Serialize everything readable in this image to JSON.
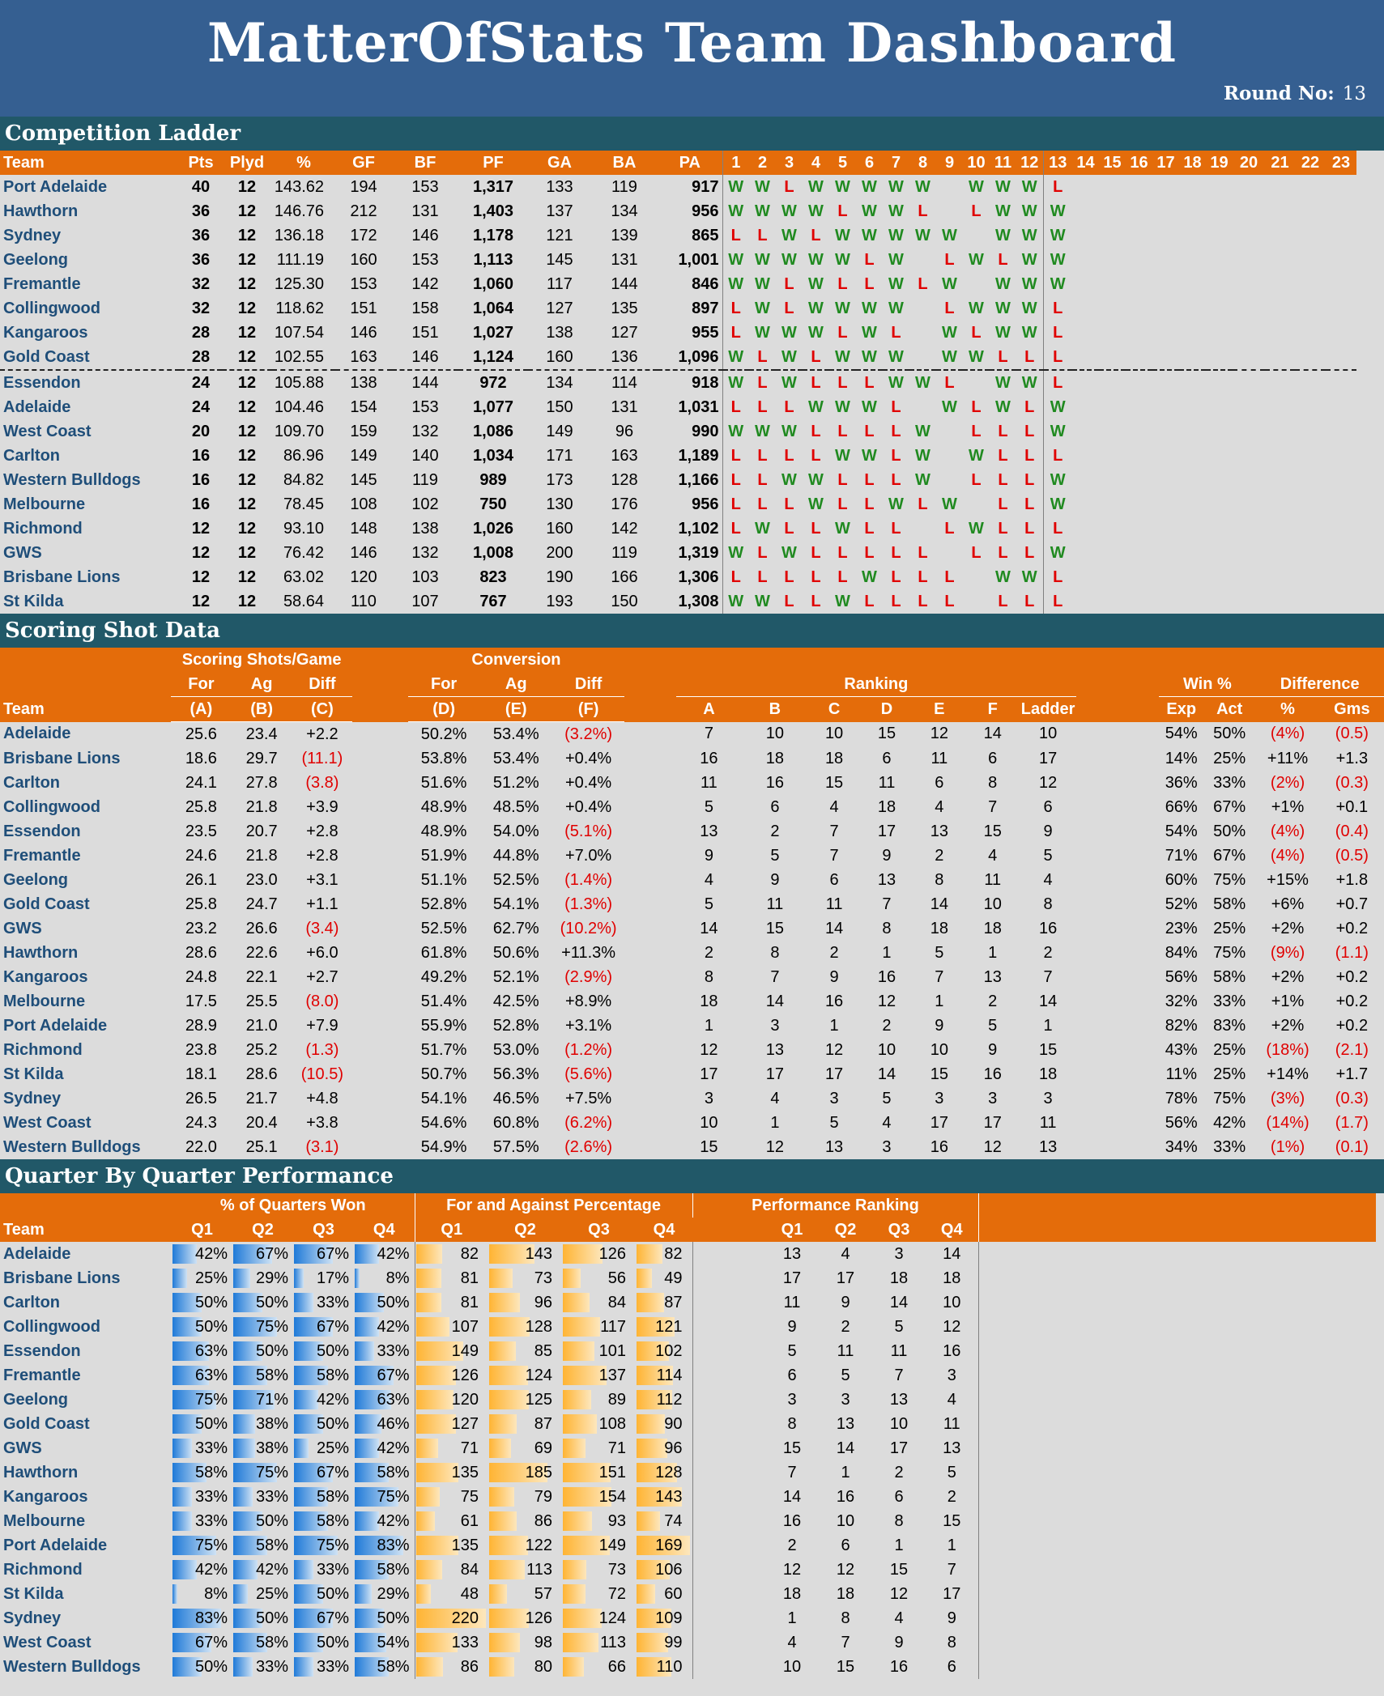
{
  "header": {
    "title": "MatterOfStats Team Dashboard",
    "round_label": "Round No:",
    "round_value": "13"
  },
  "ladder": {
    "title": "Competition Ladder",
    "columns": [
      "Team",
      "Pts",
      "Plyd",
      "%",
      "GF",
      "BF",
      "PF",
      "GA",
      "BA",
      "PA"
    ],
    "rounds": [
      "1",
      "2",
      "3",
      "4",
      "5",
      "6",
      "7",
      "8",
      "9",
      "10",
      "11",
      "12",
      "13",
      "14",
      "15",
      "16",
      "17",
      "18",
      "19",
      "20",
      "21",
      "22",
      "23"
    ],
    "rows": [
      {
        "team": "Port Adelaide",
        "pts": "40",
        "plyd": "12",
        "pct": "143.62",
        "gf": "194",
        "bf": "153",
        "pf": "1,317",
        "ga": "133",
        "ba": "119",
        "pa": "917",
        "res": "WWLWWWWW WWWL"
      },
      {
        "team": "Hawthorn",
        "pts": "36",
        "plyd": "12",
        "pct": "146.76",
        "gf": "212",
        "bf": "131",
        "pf": "1,403",
        "ga": "137",
        "ba": "134",
        "pa": "956",
        "res": "WWWWLWWL LWWW"
      },
      {
        "team": "Sydney",
        "pts": "36",
        "plyd": "12",
        "pct": "136.18",
        "gf": "172",
        "bf": "146",
        "pf": "1,178",
        "ga": "121",
        "ba": "139",
        "pa": "865",
        "res": "LLWLWWWWW WWW"
      },
      {
        "team": "Geelong",
        "pts": "36",
        "plyd": "12",
        "pct": "111.19",
        "gf": "160",
        "bf": "153",
        "pf": "1,113",
        "ga": "145",
        "ba": "131",
        "pa": "1,001",
        "res": "WWWWWLW LWLWW"
      },
      {
        "team": "Fremantle",
        "pts": "32",
        "plyd": "12",
        "pct": "125.30",
        "gf": "153",
        "bf": "142",
        "pf": "1,060",
        "ga": "117",
        "ba": "144",
        "pa": "846",
        "res": "WWLWLLWLW WWW"
      },
      {
        "team": "Collingwood",
        "pts": "32",
        "plyd": "12",
        "pct": "118.62",
        "gf": "151",
        "bf": "158",
        "pf": "1,064",
        "ga": "127",
        "ba": "135",
        "pa": "897",
        "res": "LWLWWWW LWWWL"
      },
      {
        "team": "Kangaroos",
        "pts": "28",
        "plyd": "12",
        "pct": "107.54",
        "gf": "146",
        "bf": "151",
        "pf": "1,027",
        "ga": "138",
        "ba": "127",
        "pa": "955",
        "res": "LWWWLWL WLWWL"
      },
      {
        "team": "Gold Coast",
        "pts": "28",
        "plyd": "12",
        "pct": "102.55",
        "gf": "163",
        "bf": "146",
        "pf": "1,124",
        "ga": "160",
        "ba": "136",
        "pa": "1,096",
        "res": "WLWLWWW WWLLL"
      },
      {
        "team": "Essendon",
        "pts": "24",
        "plyd": "12",
        "pct": "105.88",
        "gf": "138",
        "bf": "144",
        "pf": "972",
        "ga": "134",
        "ba": "114",
        "pa": "918",
        "res": "WLWLLLWWL WWL"
      },
      {
        "team": "Adelaide",
        "pts": "24",
        "plyd": "12",
        "pct": "104.46",
        "gf": "154",
        "bf": "153",
        "pf": "1,077",
        "ga": "150",
        "ba": "131",
        "pa": "1,031",
        "res": "LLLWWWL WLWLW"
      },
      {
        "team": "West Coast",
        "pts": "20",
        "plyd": "12",
        "pct": "109.70",
        "gf": "159",
        "bf": "132",
        "pf": "1,086",
        "ga": "149",
        "ba": "96",
        "pa": "990",
        "res": "WWWLLLLW LLLW"
      },
      {
        "team": "Carlton",
        "pts": "16",
        "plyd": "12",
        "pct": "86.96",
        "gf": "149",
        "bf": "140",
        "pf": "1,034",
        "ga": "171",
        "ba": "163",
        "pa": "1,189",
        "res": "LLLLWWLW WLLL"
      },
      {
        "team": "Western Bulldogs",
        "pts": "16",
        "plyd": "12",
        "pct": "84.82",
        "gf": "145",
        "bf": "119",
        "pf": "989",
        "ga": "173",
        "ba": "128",
        "pa": "1,166",
        "res": "LLWWLLLW LLLW"
      },
      {
        "team": "Melbourne",
        "pts": "16",
        "plyd": "12",
        "pct": "78.45",
        "gf": "108",
        "bf": "102",
        "pf": "750",
        "ga": "130",
        "ba": "176",
        "pa": "956",
        "res": "LLLWLLWLW LLW"
      },
      {
        "team": "Richmond",
        "pts": "12",
        "plyd": "12",
        "pct": "93.10",
        "gf": "148",
        "bf": "138",
        "pf": "1,026",
        "ga": "160",
        "ba": "142",
        "pa": "1,102",
        "res": "LWLLWLL LWLLL"
      },
      {
        "team": "GWS",
        "pts": "12",
        "plyd": "12",
        "pct": "76.42",
        "gf": "146",
        "bf": "132",
        "pf": "1,008",
        "ga": "200",
        "ba": "119",
        "pa": "1,319",
        "res": "WLWLLLLL LLLW"
      },
      {
        "team": "Brisbane Lions",
        "pts": "12",
        "plyd": "12",
        "pct": "63.02",
        "gf": "120",
        "bf": "103",
        "pf": "823",
        "ga": "190",
        "ba": "166",
        "pa": "1,306",
        "res": "LLLLLWLLL WWL"
      },
      {
        "team": "St Kilda",
        "pts": "12",
        "plyd": "12",
        "pct": "58.64",
        "gf": "110",
        "bf": "107",
        "pf": "767",
        "ga": "193",
        "ba": "150",
        "pa": "1,308",
        "res": "WWLLWLLLL LLL"
      }
    ]
  },
  "scoring": {
    "title": "Scoring Shot Data",
    "group_shots": "Scoring Shots/Game",
    "group_conv": "Conversion",
    "group_ranking": "Ranking",
    "group_win": "Win %",
    "group_diff": "Difference",
    "sub_for": "For",
    "sub_ag": "Ag",
    "sub_diff": "Diff",
    "sub_exp": "Exp",
    "sub_act": "Act",
    "sub_pct": "%",
    "sub_gms": "Gms",
    "team_header": "Team",
    "letters": [
      "(A)",
      "(B)",
      "(C)",
      "(D)",
      "(E)",
      "(F)"
    ],
    "rank_cols": [
      "A",
      "B",
      "C",
      "D",
      "E",
      "F",
      "Ladder"
    ],
    "rows": [
      {
        "team": "Adelaide",
        "a": "25.6",
        "b": "23.4",
        "c": "+2.2",
        "d": "50.2%",
        "e": "53.4%",
        "f": "(3.2%)",
        "rk": [
          "7",
          "10",
          "10",
          "15",
          "12",
          "14",
          "10"
        ],
        "exp": "54%",
        "act": "50%",
        "dp": "(4%)",
        "dg": "(0.5)"
      },
      {
        "team": "Brisbane Lions",
        "a": "18.6",
        "b": "29.7",
        "c": "(11.1)",
        "d": "53.8%",
        "e": "53.4%",
        "f": "+0.4%",
        "rk": [
          "16",
          "18",
          "18",
          "6",
          "11",
          "6",
          "17"
        ],
        "exp": "14%",
        "act": "25%",
        "dp": "+11%",
        "dg": "+1.3"
      },
      {
        "team": "Carlton",
        "a": "24.1",
        "b": "27.8",
        "c": "(3.8)",
        "d": "51.6%",
        "e": "51.2%",
        "f": "+0.4%",
        "rk": [
          "11",
          "16",
          "15",
          "11",
          "6",
          "8",
          "12"
        ],
        "exp": "36%",
        "act": "33%",
        "dp": "(2%)",
        "dg": "(0.3)"
      },
      {
        "team": "Collingwood",
        "a": "25.8",
        "b": "21.8",
        "c": "+3.9",
        "d": "48.9%",
        "e": "48.5%",
        "f": "+0.4%",
        "rk": [
          "5",
          "6",
          "4",
          "18",
          "4",
          "7",
          "6"
        ],
        "exp": "66%",
        "act": "67%",
        "dp": "+1%",
        "dg": "+0.1"
      },
      {
        "team": "Essendon",
        "a": "23.5",
        "b": "20.7",
        "c": "+2.8",
        "d": "48.9%",
        "e": "54.0%",
        "f": "(5.1%)",
        "rk": [
          "13",
          "2",
          "7",
          "17",
          "13",
          "15",
          "9"
        ],
        "exp": "54%",
        "act": "50%",
        "dp": "(4%)",
        "dg": "(0.4)"
      },
      {
        "team": "Fremantle",
        "a": "24.6",
        "b": "21.8",
        "c": "+2.8",
        "d": "51.9%",
        "e": "44.8%",
        "f": "+7.0%",
        "rk": [
          "9",
          "5",
          "7",
          "9",
          "2",
          "4",
          "5"
        ],
        "exp": "71%",
        "act": "67%",
        "dp": "(4%)",
        "dg": "(0.5)"
      },
      {
        "team": "Geelong",
        "a": "26.1",
        "b": "23.0",
        "c": "+3.1",
        "d": "51.1%",
        "e": "52.5%",
        "f": "(1.4%)",
        "rk": [
          "4",
          "9",
          "6",
          "13",
          "8",
          "11",
          "4"
        ],
        "exp": "60%",
        "act": "75%",
        "dp": "+15%",
        "dg": "+1.8"
      },
      {
        "team": "Gold Coast",
        "a": "25.8",
        "b": "24.7",
        "c": "+1.1",
        "d": "52.8%",
        "e": "54.1%",
        "f": "(1.3%)",
        "rk": [
          "5",
          "11",
          "11",
          "7",
          "14",
          "10",
          "8"
        ],
        "exp": "52%",
        "act": "58%",
        "dp": "+6%",
        "dg": "+0.7"
      },
      {
        "team": "GWS",
        "a": "23.2",
        "b": "26.6",
        "c": "(3.4)",
        "d": "52.5%",
        "e": "62.7%",
        "f": "(10.2%)",
        "rk": [
          "14",
          "15",
          "14",
          "8",
          "18",
          "18",
          "16"
        ],
        "exp": "23%",
        "act": "25%",
        "dp": "+2%",
        "dg": "+0.2"
      },
      {
        "team": "Hawthorn",
        "a": "28.6",
        "b": "22.6",
        "c": "+6.0",
        "d": "61.8%",
        "e": "50.6%",
        "f": "+11.3%",
        "rk": [
          "2",
          "8",
          "2",
          "1",
          "5",
          "1",
          "2"
        ],
        "exp": "84%",
        "act": "75%",
        "dp": "(9%)",
        "dg": "(1.1)"
      },
      {
        "team": "Kangaroos",
        "a": "24.8",
        "b": "22.1",
        "c": "+2.7",
        "d": "49.2%",
        "e": "52.1%",
        "f": "(2.9%)",
        "rk": [
          "8",
          "7",
          "9",
          "16",
          "7",
          "13",
          "7"
        ],
        "exp": "56%",
        "act": "58%",
        "dp": "+2%",
        "dg": "+0.2"
      },
      {
        "team": "Melbourne",
        "a": "17.5",
        "b": "25.5",
        "c": "(8.0)",
        "d": "51.4%",
        "e": "42.5%",
        "f": "+8.9%",
        "rk": [
          "18",
          "14",
          "16",
          "12",
          "1",
          "2",
          "14"
        ],
        "exp": "32%",
        "act": "33%",
        "dp": "+1%",
        "dg": "+0.2"
      },
      {
        "team": "Port Adelaide",
        "a": "28.9",
        "b": "21.0",
        "c": "+7.9",
        "d": "55.9%",
        "e": "52.8%",
        "f": "+3.1%",
        "rk": [
          "1",
          "3",
          "1",
          "2",
          "9",
          "5",
          "1"
        ],
        "exp": "82%",
        "act": "83%",
        "dp": "+2%",
        "dg": "+0.2"
      },
      {
        "team": "Richmond",
        "a": "23.8",
        "b": "25.2",
        "c": "(1.3)",
        "d": "51.7%",
        "e": "53.0%",
        "f": "(1.2%)",
        "rk": [
          "12",
          "13",
          "12",
          "10",
          "10",
          "9",
          "15"
        ],
        "exp": "43%",
        "act": "25%",
        "dp": "(18%)",
        "dg": "(2.1)"
      },
      {
        "team": "St Kilda",
        "a": "18.1",
        "b": "28.6",
        "c": "(10.5)",
        "d": "50.7%",
        "e": "56.3%",
        "f": "(5.6%)",
        "rk": [
          "17",
          "17",
          "17",
          "14",
          "15",
          "16",
          "18"
        ],
        "exp": "11%",
        "act": "25%",
        "dp": "+14%",
        "dg": "+1.7"
      },
      {
        "team": "Sydney",
        "a": "26.5",
        "b": "21.7",
        "c": "+4.8",
        "d": "54.1%",
        "e": "46.5%",
        "f": "+7.5%",
        "rk": [
          "3",
          "4",
          "3",
          "5",
          "3",
          "3",
          "3"
        ],
        "exp": "78%",
        "act": "75%",
        "dp": "(3%)",
        "dg": "(0.3)"
      },
      {
        "team": "West Coast",
        "a": "24.3",
        "b": "20.4",
        "c": "+3.8",
        "d": "54.6%",
        "e": "60.8%",
        "f": "(6.2%)",
        "rk": [
          "10",
          "1",
          "5",
          "4",
          "17",
          "17",
          "11"
        ],
        "exp": "56%",
        "act": "42%",
        "dp": "(14%)",
        "dg": "(1.7)"
      },
      {
        "team": "Western Bulldogs",
        "a": "22.0",
        "b": "25.1",
        "c": "(3.1)",
        "d": "54.9%",
        "e": "57.5%",
        "f": "(2.6%)",
        "rk": [
          "15",
          "12",
          "13",
          "3",
          "16",
          "12",
          "13"
        ],
        "exp": "34%",
        "act": "33%",
        "dp": "(1%)",
        "dg": "(0.1)"
      }
    ]
  },
  "quarters": {
    "title": "Quarter By Quarter Performance",
    "group_won": "% of Quarters Won",
    "group_fa": "For and Against Percentage",
    "group_rank": "Performance Ranking",
    "team_header": "Team",
    "q_labels": [
      "Q1",
      "Q2",
      "Q3",
      "Q4"
    ],
    "rows": [
      {
        "team": "Adelaide",
        "won": [
          "42%",
          "67%",
          "67%",
          "42%"
        ],
        "fa": [
          "82",
          "143",
          "126",
          "82"
        ],
        "rk": [
          "13",
          "4",
          "3",
          "14"
        ]
      },
      {
        "team": "Brisbane Lions",
        "won": [
          "25%",
          "29%",
          "17%",
          "8%"
        ],
        "fa": [
          "81",
          "73",
          "56",
          "49"
        ],
        "rk": [
          "17",
          "17",
          "18",
          "18"
        ]
      },
      {
        "team": "Carlton",
        "won": [
          "50%",
          "50%",
          "33%",
          "50%"
        ],
        "fa": [
          "81",
          "96",
          "84",
          "87"
        ],
        "rk": [
          "11",
          "9",
          "14",
          "10"
        ]
      },
      {
        "team": "Collingwood",
        "won": [
          "50%",
          "75%",
          "67%",
          "42%"
        ],
        "fa": [
          "107",
          "128",
          "117",
          "121"
        ],
        "rk": [
          "9",
          "2",
          "5",
          "12"
        ]
      },
      {
        "team": "Essendon",
        "won": [
          "63%",
          "50%",
          "50%",
          "33%"
        ],
        "fa": [
          "149",
          "85",
          "101",
          "102"
        ],
        "rk": [
          "5",
          "11",
          "11",
          "16"
        ]
      },
      {
        "team": "Fremantle",
        "won": [
          "63%",
          "58%",
          "58%",
          "67%"
        ],
        "fa": [
          "126",
          "124",
          "137",
          "114"
        ],
        "rk": [
          "6",
          "5",
          "7",
          "3"
        ]
      },
      {
        "team": "Geelong",
        "won": [
          "75%",
          "71%",
          "42%",
          "63%"
        ],
        "fa": [
          "120",
          "125",
          "89",
          "112"
        ],
        "rk": [
          "3",
          "3",
          "13",
          "4"
        ]
      },
      {
        "team": "Gold Coast",
        "won": [
          "50%",
          "38%",
          "50%",
          "46%"
        ],
        "fa": [
          "127",
          "87",
          "108",
          "90"
        ],
        "rk": [
          "8",
          "13",
          "10",
          "11"
        ]
      },
      {
        "team": "GWS",
        "won": [
          "33%",
          "38%",
          "25%",
          "42%"
        ],
        "fa": [
          "71",
          "69",
          "71",
          "96"
        ],
        "rk": [
          "15",
          "14",
          "17",
          "13"
        ]
      },
      {
        "team": "Hawthorn",
        "won": [
          "58%",
          "75%",
          "67%",
          "58%"
        ],
        "fa": [
          "135",
          "185",
          "151",
          "128"
        ],
        "rk": [
          "7",
          "1",
          "2",
          "5"
        ]
      },
      {
        "team": "Kangaroos",
        "won": [
          "33%",
          "33%",
          "58%",
          "75%"
        ],
        "fa": [
          "75",
          "79",
          "154",
          "143"
        ],
        "rk": [
          "14",
          "16",
          "6",
          "2"
        ]
      },
      {
        "team": "Melbourne",
        "won": [
          "33%",
          "50%",
          "58%",
          "42%"
        ],
        "fa": [
          "61",
          "86",
          "93",
          "74"
        ],
        "rk": [
          "16",
          "10",
          "8",
          "15"
        ]
      },
      {
        "team": "Port Adelaide",
        "won": [
          "75%",
          "58%",
          "75%",
          "83%"
        ],
        "fa": [
          "135",
          "122",
          "149",
          "169"
        ],
        "rk": [
          "2",
          "6",
          "1",
          "1"
        ]
      },
      {
        "team": "Richmond",
        "won": [
          "42%",
          "42%",
          "33%",
          "58%"
        ],
        "fa": [
          "84",
          "113",
          "73",
          "106"
        ],
        "rk": [
          "12",
          "12",
          "15",
          "7"
        ]
      },
      {
        "team": "St Kilda",
        "won": [
          "8%",
          "25%",
          "50%",
          "29%"
        ],
        "fa": [
          "48",
          "57",
          "72",
          "60"
        ],
        "rk": [
          "18",
          "18",
          "12",
          "17"
        ]
      },
      {
        "team": "Sydney",
        "won": [
          "83%",
          "50%",
          "67%",
          "50%"
        ],
        "fa": [
          "220",
          "126",
          "124",
          "109"
        ],
        "rk": [
          "1",
          "8",
          "4",
          "9"
        ]
      },
      {
        "team": "West Coast",
        "won": [
          "67%",
          "58%",
          "50%",
          "54%"
        ],
        "fa": [
          "133",
          "98",
          "113",
          "99"
        ],
        "rk": [
          "4",
          "7",
          "9",
          "8"
        ]
      },
      {
        "team": "Western Bulldogs",
        "won": [
          "50%",
          "33%",
          "33%",
          "58%"
        ],
        "fa": [
          "86",
          "80",
          "66",
          "110"
        ],
        "rk": [
          "10",
          "15",
          "16",
          "6"
        ]
      }
    ]
  },
  "colors": {
    "header": "#355f91",
    "section": "#215868",
    "orange": "#e46c0a",
    "win": "#208a20",
    "loss": "#e00000",
    "team": "#1f4e79"
  }
}
